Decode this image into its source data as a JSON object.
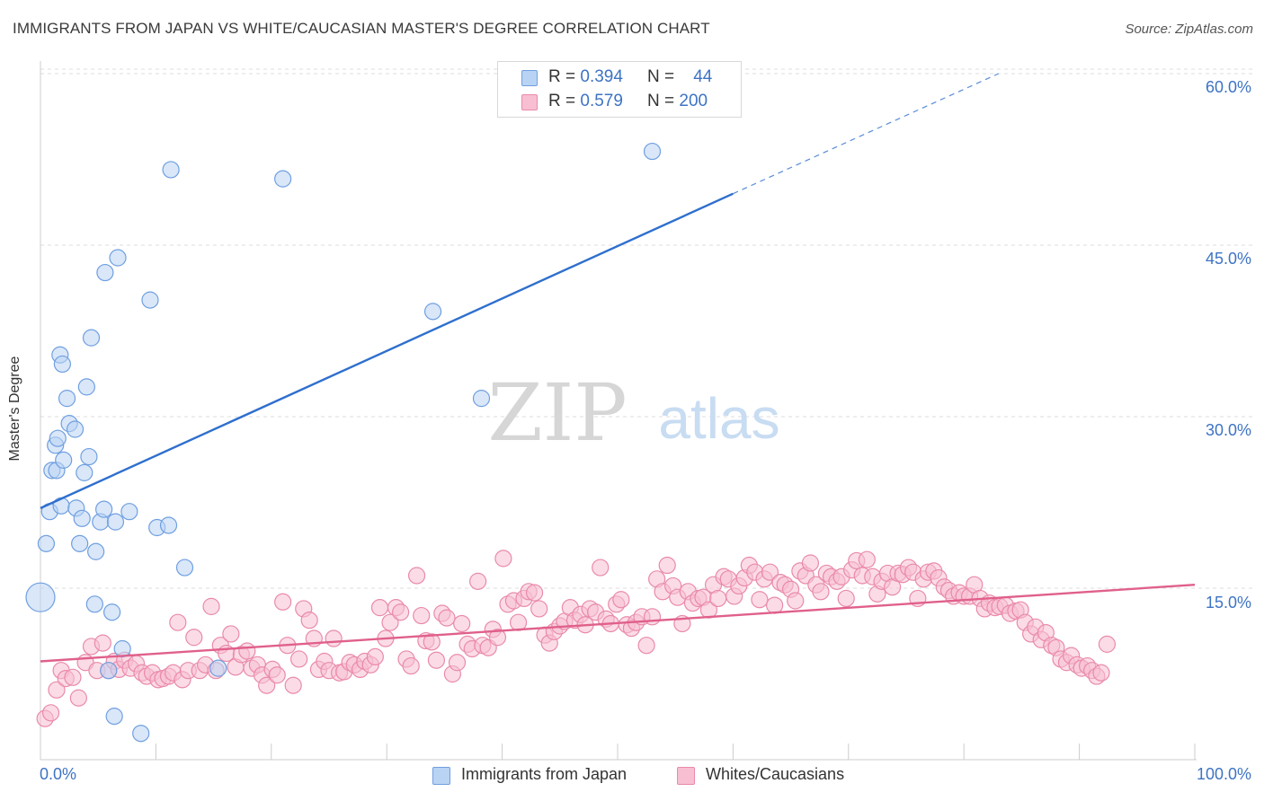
{
  "title": "IMMIGRANTS FROM JAPAN VS WHITE/CAUCASIAN MASTER'S DEGREE CORRELATION CHART",
  "source": "Source: ZipAtlas.com",
  "watermark": {
    "zip": "ZIP",
    "atlas": "atlas"
  },
  "colors": {
    "blue_fill": "#b9d3f4",
    "blue_stroke": "#6f9fe0",
    "blue_line": "#2e6fce",
    "pink_fill": "#f7bfd1",
    "pink_stroke": "#e98aaa",
    "pink_line": "#e0608a",
    "grid": "#dddddd",
    "axis_text": "#3d73c4"
  },
  "legend_top": {
    "rows": [
      {
        "r_label": "R =",
        "r_value": "0.394",
        "n_label": "N =",
        "n_value": "44",
        "swatch": "blue"
      },
      {
        "r_label": "R =",
        "r_value": "0.579",
        "n_label": "N =",
        "n_value": "200",
        "swatch": "pink"
      }
    ]
  },
  "legend_bottom": [
    {
      "label": "Immigrants from Japan",
      "swatch": "blue"
    },
    {
      "label": "Whites/Caucasians",
      "swatch": "pink"
    }
  ],
  "chart_data": {
    "type": "scatter",
    "title": "IMMIGRANTS FROM JAPAN VS WHITE/CAUCASIAN MASTER'S DEGREE CORRELATION CHART",
    "xlabel": "",
    "ylabel": "Master's Degree",
    "x_tick_labels": [
      "0.0%",
      "100.0%"
    ],
    "y_tick_labels": [
      "15.0%",
      "30.0%",
      "45.0%",
      "60.0%"
    ],
    "y_ticks": [
      15,
      30,
      45,
      60
    ],
    "xlim": [
      0,
      100
    ],
    "ylim": [
      0,
      61
    ],
    "grid": "horizontal dashed",
    "legend_placement": "bottom-center",
    "series": [
      {
        "name": "Immigrants from Japan",
        "color": "blue",
        "R": 0.394,
        "N": 44,
        "trend": {
          "x0": 0,
          "y0": 22.0,
          "x1": 60,
          "y1": 49.5,
          "dashed_to_x": 83,
          "dashed_to_y": 60.0
        },
        "points": [
          [
            0,
            14.2
          ],
          [
            0.5,
            18.9
          ],
          [
            0.8,
            21.7
          ],
          [
            1.0,
            25.3
          ],
          [
            1.3,
            27.5
          ],
          [
            1.4,
            25.3
          ],
          [
            1.5,
            28.1
          ],
          [
            1.7,
            35.4
          ],
          [
            1.8,
            22.2
          ],
          [
            2.0,
            26.2
          ],
          [
            2.3,
            31.6
          ],
          [
            2.5,
            29.4
          ],
          [
            1.9,
            34.6
          ],
          [
            3.0,
            28.9
          ],
          [
            3.1,
            22.0
          ],
          [
            3.4,
            18.9
          ],
          [
            3.6,
            21.1
          ],
          [
            3.8,
            25.1
          ],
          [
            4.0,
            32.6
          ],
          [
            4.2,
            26.5
          ],
          [
            4.4,
            36.9
          ],
          [
            4.7,
            13.6
          ],
          [
            4.8,
            18.2
          ],
          [
            5.2,
            20.8
          ],
          [
            5.5,
            21.9
          ],
          [
            5.6,
            42.6
          ],
          [
            5.9,
            7.8
          ],
          [
            6.2,
            12.9
          ],
          [
            6.4,
            3.8
          ],
          [
            6.5,
            20.8
          ],
          [
            6.7,
            43.9
          ],
          [
            7.1,
            9.7
          ],
          [
            7.7,
            21.7
          ],
          [
            8.7,
            2.3
          ],
          [
            9.5,
            40.2
          ],
          [
            10.1,
            20.3
          ],
          [
            11.1,
            20.5
          ],
          [
            11.3,
            51.6
          ],
          [
            12.5,
            16.8
          ],
          [
            15.4,
            8.0
          ],
          [
            21.0,
            50.8
          ],
          [
            34.0,
            39.2
          ],
          [
            38.2,
            31.6
          ],
          [
            53.0,
            53.2
          ]
        ]
      },
      {
        "name": "Whites/Caucasians",
        "color": "pink",
        "R": 0.579,
        "N": 200,
        "trend": {
          "x0": 0,
          "y0": 8.6,
          "x1": 100,
          "y1": 15.3
        },
        "points": [
          [
            0.4,
            3.6
          ],
          [
            0.9,
            4.1
          ],
          [
            1.4,
            6.1
          ],
          [
            1.8,
            7.8
          ],
          [
            2.2,
            7.1
          ],
          [
            2.8,
            7.2
          ],
          [
            3.3,
            5.4
          ],
          [
            3.9,
            8.5
          ],
          [
            4.4,
            9.9
          ],
          [
            4.9,
            7.8
          ],
          [
            5.4,
            10.2
          ],
          [
            5.9,
            7.8
          ],
          [
            6.4,
            8.6
          ],
          [
            6.8,
            7.9
          ],
          [
            7.3,
            8.7
          ],
          [
            7.8,
            8.0
          ],
          [
            8.3,
            8.4
          ],
          [
            8.8,
            7.6
          ],
          [
            9.2,
            7.3
          ],
          [
            9.7,
            7.6
          ],
          [
            10.2,
            7.0
          ],
          [
            10.6,
            7.1
          ],
          [
            11.1,
            7.3
          ],
          [
            11.5,
            7.6
          ],
          [
            11.9,
            12.0
          ],
          [
            12.3,
            7.0
          ],
          [
            12.8,
            7.8
          ],
          [
            13.3,
            10.7
          ],
          [
            13.8,
            7.8
          ],
          [
            14.3,
            8.3
          ],
          [
            14.8,
            13.4
          ],
          [
            15.2,
            7.8
          ],
          [
            15.6,
            10.0
          ],
          [
            16.1,
            9.3
          ],
          [
            16.5,
            11.0
          ],
          [
            16.9,
            8.1
          ],
          [
            17.4,
            9.2
          ],
          [
            17.9,
            9.5
          ],
          [
            18.3,
            8.0
          ],
          [
            18.8,
            8.3
          ],
          [
            19.2,
            7.4
          ],
          [
            19.6,
            6.5
          ],
          [
            20.1,
            7.9
          ],
          [
            20.5,
            7.4
          ],
          [
            21.0,
            13.8
          ],
          [
            21.4,
            10.0
          ],
          [
            21.9,
            6.5
          ],
          [
            22.4,
            8.8
          ],
          [
            22.8,
            13.2
          ],
          [
            23.3,
            12.2
          ],
          [
            23.7,
            10.6
          ],
          [
            24.1,
            7.9
          ],
          [
            24.6,
            8.6
          ],
          [
            25.0,
            7.8
          ],
          [
            25.4,
            10.6
          ],
          [
            25.9,
            7.6
          ],
          [
            26.3,
            7.7
          ],
          [
            26.8,
            8.5
          ],
          [
            27.2,
            8.3
          ],
          [
            27.7,
            7.9
          ],
          [
            28.1,
            8.6
          ],
          [
            28.6,
            8.3
          ],
          [
            29.0,
            9.0
          ],
          [
            29.4,
            13.3
          ],
          [
            29.9,
            10.6
          ],
          [
            30.3,
            12.0
          ],
          [
            30.8,
            13.3
          ],
          [
            31.2,
            12.9
          ],
          [
            31.7,
            8.8
          ],
          [
            32.1,
            8.2
          ],
          [
            32.6,
            16.1
          ],
          [
            33.0,
            12.6
          ],
          [
            33.4,
            10.4
          ],
          [
            33.9,
            10.3
          ],
          [
            34.3,
            8.7
          ],
          [
            34.8,
            12.8
          ],
          [
            35.2,
            12.4
          ],
          [
            35.7,
            7.5
          ],
          [
            36.1,
            8.5
          ],
          [
            36.5,
            11.9
          ],
          [
            37.0,
            10.1
          ],
          [
            37.4,
            9.7
          ],
          [
            37.9,
            15.6
          ],
          [
            38.3,
            10.0
          ],
          [
            38.8,
            9.8
          ],
          [
            39.2,
            11.4
          ],
          [
            39.6,
            10.7
          ],
          [
            40.1,
            17.6
          ],
          [
            40.5,
            13.6
          ],
          [
            41.0,
            13.9
          ],
          [
            41.4,
            12.0
          ],
          [
            41.9,
            14.1
          ],
          [
            42.3,
            14.7
          ],
          [
            42.8,
            14.6
          ],
          [
            43.2,
            13.2
          ],
          [
            43.7,
            10.9
          ],
          [
            44.1,
            10.2
          ],
          [
            44.5,
            11.2
          ],
          [
            45.0,
            11.7
          ],
          [
            45.4,
            12.1
          ],
          [
            45.9,
            13.3
          ],
          [
            46.3,
            12.2
          ],
          [
            46.8,
            12.7
          ],
          [
            47.2,
            11.8
          ],
          [
            47.6,
            13.2
          ],
          [
            48.1,
            12.9
          ],
          [
            48.5,
            16.8
          ],
          [
            49.0,
            12.3
          ],
          [
            49.4,
            11.9
          ],
          [
            49.9,
            13.6
          ],
          [
            50.3,
            14.0
          ],
          [
            50.8,
            11.8
          ],
          [
            51.2,
            11.5
          ],
          [
            51.6,
            12.0
          ],
          [
            52.1,
            12.5
          ],
          [
            52.5,
            10.0
          ],
          [
            53.0,
            12.5
          ],
          [
            53.4,
            15.8
          ],
          [
            53.9,
            14.7
          ],
          [
            54.3,
            17.0
          ],
          [
            54.8,
            15.2
          ],
          [
            55.2,
            14.2
          ],
          [
            55.6,
            11.9
          ],
          [
            56.1,
            14.7
          ],
          [
            56.5,
            13.7
          ],
          [
            57.0,
            14.1
          ],
          [
            57.4,
            14.2
          ],
          [
            57.9,
            13.1
          ],
          [
            58.3,
            15.3
          ],
          [
            58.7,
            14.1
          ],
          [
            59.2,
            16.0
          ],
          [
            59.6,
            15.8
          ],
          [
            60.1,
            14.3
          ],
          [
            60.5,
            15.2
          ],
          [
            61.0,
            15.9
          ],
          [
            61.4,
            17.0
          ],
          [
            61.9,
            16.4
          ],
          [
            62.3,
            14.0
          ],
          [
            62.7,
            15.8
          ],
          [
            63.2,
            16.4
          ],
          [
            63.6,
            13.5
          ],
          [
            64.1,
            15.5
          ],
          [
            64.5,
            15.3
          ],
          [
            65.0,
            14.9
          ],
          [
            65.4,
            13.9
          ],
          [
            65.8,
            16.5
          ],
          [
            66.3,
            16.1
          ],
          [
            66.7,
            17.2
          ],
          [
            67.2,
            15.3
          ],
          [
            67.6,
            14.7
          ],
          [
            68.1,
            16.3
          ],
          [
            68.5,
            16.0
          ],
          [
            69.0,
            15.6
          ],
          [
            69.4,
            16.0
          ],
          [
            69.8,
            14.1
          ],
          [
            70.3,
            16.6
          ],
          [
            70.7,
            17.4
          ],
          [
            71.2,
            16.1
          ],
          [
            71.6,
            17.5
          ],
          [
            72.1,
            16.0
          ],
          [
            72.5,
            14.5
          ],
          [
            72.9,
            15.6
          ],
          [
            73.4,
            16.3
          ],
          [
            73.8,
            15.1
          ],
          [
            74.3,
            16.3
          ],
          [
            74.7,
            16.2
          ],
          [
            75.2,
            16.8
          ],
          [
            75.6,
            16.4
          ],
          [
            76.0,
            14.1
          ],
          [
            76.5,
            15.8
          ],
          [
            76.9,
            16.4
          ],
          [
            77.4,
            16.5
          ],
          [
            77.8,
            15.9
          ],
          [
            78.3,
            15.1
          ],
          [
            78.7,
            14.8
          ],
          [
            79.1,
            14.3
          ],
          [
            79.6,
            14.6
          ],
          [
            80.0,
            14.3
          ],
          [
            80.5,
            14.3
          ],
          [
            80.9,
            15.3
          ],
          [
            81.4,
            14.1
          ],
          [
            81.8,
            13.2
          ],
          [
            82.2,
            13.7
          ],
          [
            82.7,
            13.3
          ],
          [
            83.1,
            13.4
          ],
          [
            83.6,
            13.5
          ],
          [
            84.0,
            12.8
          ],
          [
            84.5,
            13.0
          ],
          [
            84.9,
            13.1
          ],
          [
            85.3,
            12.0
          ],
          [
            85.8,
            11.0
          ],
          [
            86.2,
            11.6
          ],
          [
            86.7,
            10.5
          ],
          [
            87.1,
            11.1
          ],
          [
            87.6,
            10.0
          ],
          [
            88.0,
            9.8
          ],
          [
            88.4,
            8.8
          ],
          [
            88.9,
            8.5
          ],
          [
            89.3,
            9.1
          ],
          [
            89.8,
            8.3
          ],
          [
            90.2,
            8.0
          ],
          [
            90.7,
            8.2
          ],
          [
            91.1,
            7.8
          ],
          [
            91.5,
            7.3
          ],
          [
            91.9,
            7.6
          ],
          [
            92.4,
            10.1
          ]
        ]
      }
    ]
  }
}
